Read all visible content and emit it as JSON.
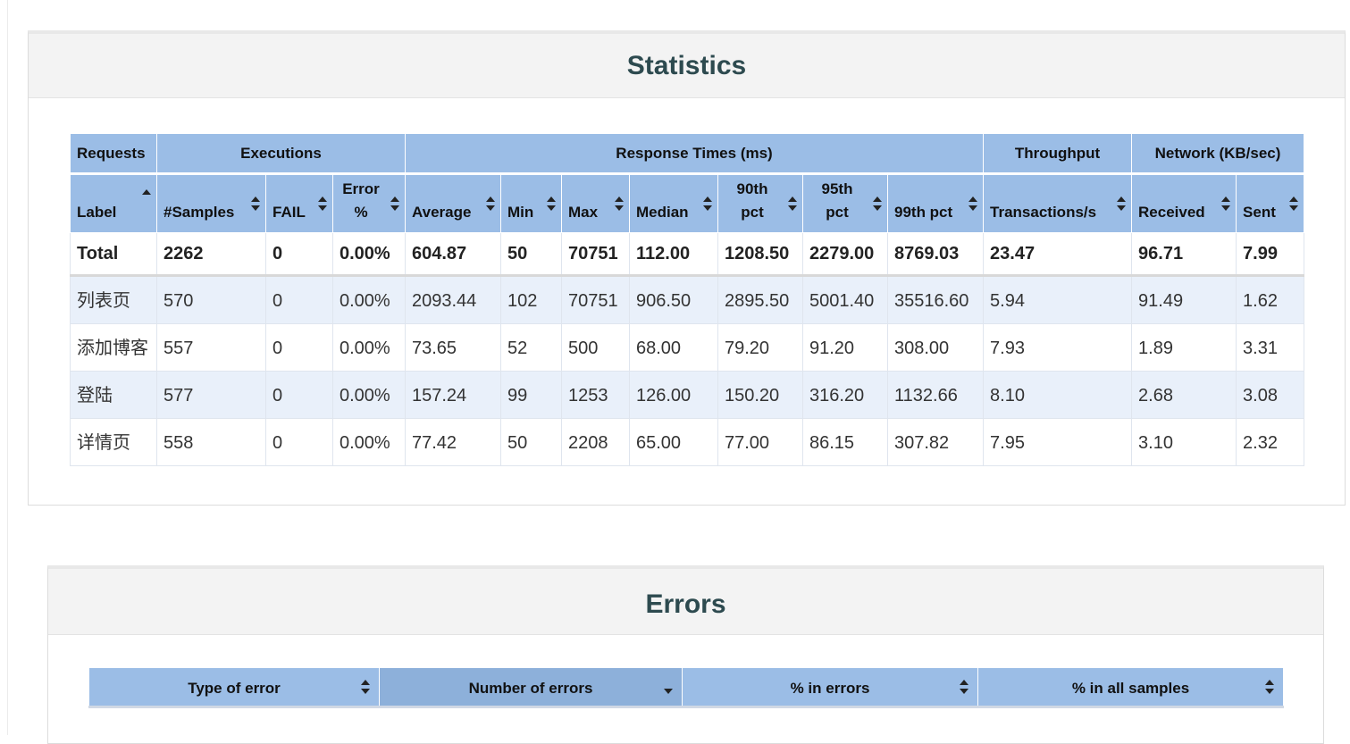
{
  "statistics": {
    "title": "Statistics",
    "groups": {
      "requests": "Requests",
      "executions": "Executions",
      "response_times": "Response Times (ms)",
      "throughput": "Throughput",
      "network": "Network (KB/sec)"
    },
    "columns": {
      "label": "Label",
      "samples": "#Samples",
      "fail": "FAIL",
      "error_line1": "Error",
      "error_line2": "%",
      "average": "Average",
      "min": "Min",
      "max": "Max",
      "median": "Median",
      "p90_line1": "90th",
      "p90_line2": "pct",
      "p95_line1": "95th",
      "p95_line2": "pct",
      "p99": "99th pct",
      "transactions": "Transactions/s",
      "received": "Received",
      "sent": "Sent"
    },
    "total": {
      "label": "Total",
      "samples": "2262",
      "fail": "0",
      "error": "0.00%",
      "average": "604.87",
      "min": "50",
      "max": "70751",
      "median": "112.00",
      "p90": "1208.50",
      "p95": "2279.00",
      "p99": "8769.03",
      "transactions": "23.47",
      "received": "96.71",
      "sent": "7.99"
    },
    "rows": [
      {
        "label": "列表页",
        "samples": "570",
        "fail": "0",
        "error": "0.00%",
        "average": "2093.44",
        "min": "102",
        "max": "70751",
        "median": "906.50",
        "p90": "2895.50",
        "p95": "5001.40",
        "p99": "35516.60",
        "transactions": "5.94",
        "received": "91.49",
        "sent": "1.62"
      },
      {
        "label": "添加博客",
        "samples": "557",
        "fail": "0",
        "error": "0.00%",
        "average": "73.65",
        "min": "52",
        "max": "500",
        "median": "68.00",
        "p90": "79.20",
        "p95": "91.20",
        "p99": "308.00",
        "transactions": "7.93",
        "received": "1.89",
        "sent": "3.31"
      },
      {
        "label": "登陆",
        "samples": "577",
        "fail": "0",
        "error": "0.00%",
        "average": "157.24",
        "min": "99",
        "max": "1253",
        "median": "126.00",
        "p90": "150.20",
        "p95": "316.20",
        "p99": "1132.66",
        "transactions": "8.10",
        "received": "2.68",
        "sent": "3.08"
      },
      {
        "label": "详情页",
        "samples": "558",
        "fail": "0",
        "error": "0.00%",
        "average": "77.42",
        "min": "50",
        "max": "2208",
        "median": "65.00",
        "p90": "77.00",
        "p95": "86.15",
        "p99": "307.82",
        "transactions": "7.95",
        "received": "3.10",
        "sent": "2.32"
      }
    ]
  },
  "errors": {
    "title": "Errors",
    "columns": {
      "type": "Type of error",
      "number": "Number of errors",
      "pct_errors": "% in errors",
      "pct_all": "% in all samples"
    }
  },
  "icons": {
    "sort_both": "sort-both-icon",
    "sort_asc": "sort-asc-icon",
    "sort_desc": "sort-desc-icon"
  },
  "colors": {
    "header_bg": "#9bbde6",
    "row_alt": "#e9f0fa",
    "title": "#2d4a4f"
  }
}
